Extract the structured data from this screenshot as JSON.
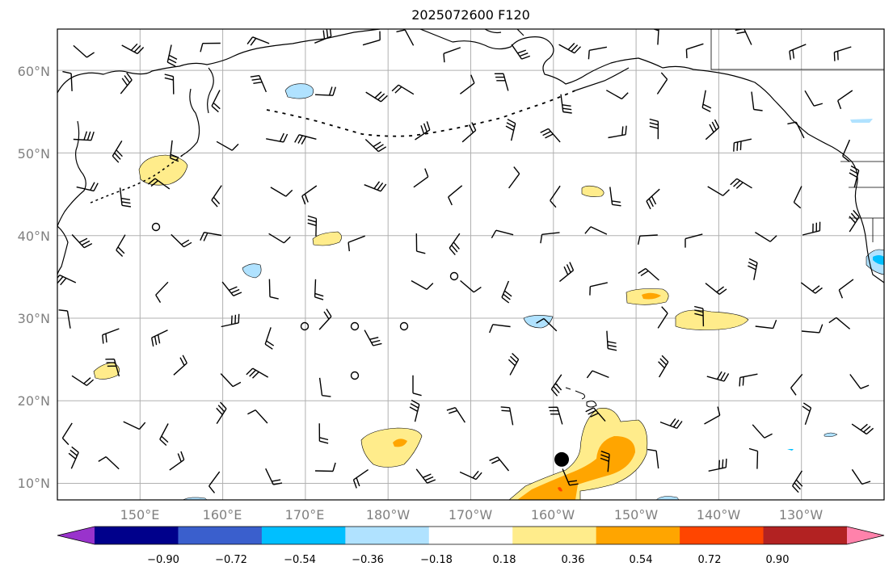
{
  "title": "2025072600 F120",
  "map": {
    "lon_range": [
      140,
      240
    ],
    "lat_range": [
      8,
      65
    ],
    "lat_labels": [
      "10°N",
      "20°N",
      "30°N",
      "40°N",
      "50°N",
      "60°N"
    ],
    "lat_values": [
      10,
      20,
      30,
      40,
      50,
      60
    ],
    "lon_labels": [
      "150°E",
      "160°E",
      "170°E",
      "180°W",
      "170°W",
      "160°W",
      "150°W",
      "140°W",
      "130°W"
    ],
    "lon_values": [
      150,
      160,
      170,
      180,
      190,
      200,
      210,
      220,
      230
    ],
    "marker": {
      "lon": 201.0,
      "lat": 12.9
    }
  },
  "colorbar": {
    "tick_labels": [
      "−0.90",
      "−0.72",
      "−0.54",
      "−0.36",
      "−0.18",
      "0.18",
      "0.36",
      "0.54",
      "0.72",
      "0.90"
    ],
    "colors": [
      "#9933cc",
      "#00008b",
      "#3a5fcd",
      "#00bfff",
      "#b0e2ff",
      "#ffffff",
      "#ffec8b",
      "#ffa500",
      "#ff4500",
      "#b22222",
      "#ff82ab"
    ]
  },
  "colors": {
    "grid": "#b0b0b0",
    "coast": "#000000",
    "tick_text": "#808080"
  }
}
